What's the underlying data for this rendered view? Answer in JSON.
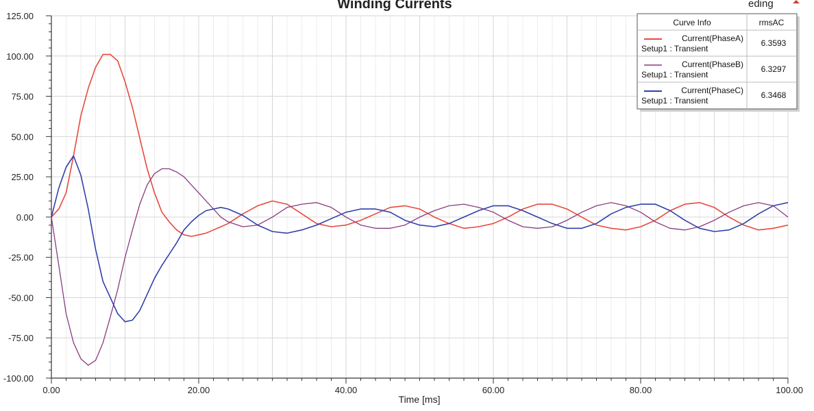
{
  "header": {
    "corner_label": "eding"
  },
  "colors": {
    "phase_a": "#e8483b",
    "phase_b": "#8a3a7e",
    "phase_c": "#2f3fa8",
    "grid": "#d6d6d6",
    "axis": "#333333"
  },
  "chart_data": {
    "type": "line",
    "title": "Winding Currents",
    "xlabel": "Time [ms]",
    "ylabel": "",
    "xlim": [
      0,
      100
    ],
    "ylim": [
      -100,
      125
    ],
    "x_ticks": [
      "0.00",
      "20.00",
      "40.00",
      "60.00",
      "80.00",
      "100.00"
    ],
    "y_ticks": [
      "125.00",
      "100.00",
      "75.00",
      "50.00",
      "25.00",
      "0.00",
      "-25.00",
      "-50.00",
      "-75.00",
      "-100.00"
    ],
    "grid": true,
    "legend_position": "top-right",
    "legend": {
      "header_name": "Curve Info",
      "header_value": "rmsAC",
      "rows": [
        {
          "name": "Current(PhaseA)",
          "setup": "Setup1 : Transient",
          "value": "6.3593"
        },
        {
          "name": "Current(PhaseB)",
          "setup": "Setup1 : Transient",
          "value": "6.3297"
        },
        {
          "name": "Current(PhaseC)",
          "setup": "Setup1 : Transient",
          "value": "6.3468"
        }
      ]
    },
    "series": [
      {
        "name": "Current(PhaseA)",
        "x": [
          0,
          1,
          2,
          3,
          4,
          5,
          6,
          7,
          8,
          9,
          10,
          11,
          12,
          13,
          14,
          15,
          16,
          17,
          18,
          19,
          20,
          21,
          22,
          23,
          24,
          26,
          28,
          30,
          32,
          34,
          36,
          38,
          40,
          42,
          44,
          46,
          48,
          50,
          52,
          54,
          56,
          58,
          60,
          62,
          64,
          66,
          68,
          70,
          72,
          74,
          76,
          78,
          80,
          82,
          84,
          86,
          88,
          90,
          92,
          94,
          96,
          98,
          100
        ],
        "values": [
          0,
          5,
          15,
          38,
          63,
          80,
          93,
          101,
          101,
          97,
          84,
          68,
          49,
          30,
          15,
          3,
          -3,
          -8,
          -11,
          -12,
          -11,
          -10,
          -8,
          -6,
          -4,
          2,
          7,
          10,
          8,
          2,
          -4,
          -6,
          -5,
          -2,
          2,
          6,
          7,
          5,
          0,
          -4,
          -7,
          -6,
          -4,
          0,
          5,
          8,
          8,
          5,
          0,
          -5,
          -7,
          -8,
          -6,
          -2,
          4,
          8,
          9,
          6,
          0,
          -5,
          -8,
          -7,
          -5
        ]
      },
      {
        "name": "Current(PhaseB)",
        "x": [
          0,
          1,
          2,
          3,
          4,
          5,
          6,
          7,
          8,
          9,
          10,
          11,
          12,
          13,
          14,
          15,
          16,
          17,
          18,
          19,
          20,
          21,
          22,
          23,
          24,
          26,
          28,
          30,
          32,
          34,
          36,
          38,
          40,
          42,
          44,
          46,
          48,
          50,
          52,
          54,
          56,
          58,
          60,
          62,
          64,
          66,
          68,
          70,
          72,
          74,
          76,
          78,
          80,
          82,
          84,
          86,
          88,
          90,
          92,
          94,
          96,
          98,
          100
        ],
        "values": [
          0,
          -30,
          -60,
          -78,
          -88,
          -92,
          -89,
          -78,
          -62,
          -45,
          -25,
          -8,
          8,
          20,
          27,
          30,
          30,
          28,
          25,
          20,
          15,
          10,
          5,
          0,
          -3,
          -6,
          -5,
          0,
          6,
          8,
          9,
          6,
          0,
          -5,
          -7,
          -7,
          -5,
          0,
          4,
          7,
          8,
          6,
          3,
          -2,
          -6,
          -7,
          -6,
          -2,
          3,
          7,
          9,
          7,
          3,
          -3,
          -7,
          -8,
          -6,
          -2,
          3,
          7,
          9,
          7,
          0
        ]
      },
      {
        "name": "Current(PhaseC)",
        "x": [
          0,
          1,
          2,
          3,
          4,
          5,
          6,
          7,
          8,
          9,
          10,
          11,
          12,
          13,
          14,
          15,
          16,
          17,
          18,
          19,
          20,
          21,
          22,
          23,
          24,
          26,
          28,
          30,
          32,
          34,
          36,
          38,
          40,
          42,
          44,
          46,
          48,
          50,
          52,
          54,
          56,
          58,
          60,
          62,
          64,
          66,
          68,
          70,
          72,
          74,
          76,
          78,
          80,
          82,
          84,
          86,
          88,
          90,
          92,
          94,
          96,
          98,
          100
        ],
        "values": [
          0,
          18,
          31,
          38,
          26,
          5,
          -20,
          -40,
          -50,
          -60,
          -65,
          -64,
          -58,
          -48,
          -38,
          -30,
          -23,
          -16,
          -8,
          -3,
          1,
          4,
          5,
          6,
          5,
          1,
          -5,
          -9,
          -10,
          -8,
          -5,
          -1,
          3,
          5,
          5,
          3,
          -2,
          -5,
          -6,
          -4,
          0,
          4,
          7,
          7,
          4,
          0,
          -4,
          -7,
          -7,
          -4,
          2,
          6,
          8,
          8,
          4,
          -2,
          -7,
          -9,
          -8,
          -4,
          2,
          7,
          9
        ]
      }
    ]
  }
}
